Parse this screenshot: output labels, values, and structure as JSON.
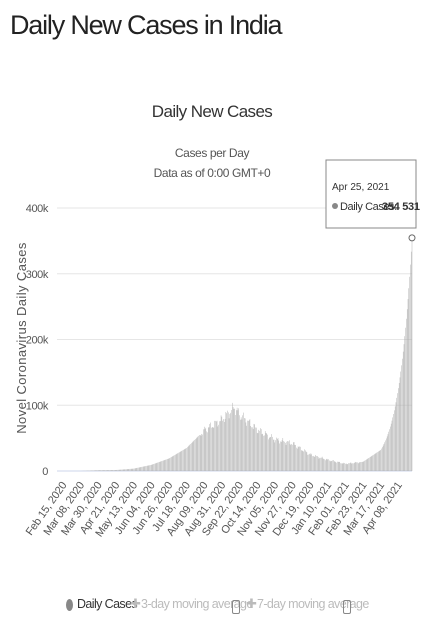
{
  "page": {
    "title": "Daily New Cases in India"
  },
  "chart_data": {
    "type": "bar",
    "title": "Daily New Cases",
    "subtitle_lines": [
      "Cases per Day",
      "Data as of 0:00 GMT+0"
    ],
    "xlabel": "",
    "ylabel": "Novel Coronavirus Daily Cases",
    "ylim": [
      0,
      400000
    ],
    "y_ticks": [
      0,
      100000,
      200000,
      300000,
      400000
    ],
    "y_tick_labels": [
      "0",
      "100k",
      "200k",
      "300k",
      "400k"
    ],
    "x_range": [
      "2020-02-15",
      "2021-04-25"
    ],
    "x_tick_labels": [
      "Feb 15, 2020",
      "Mar 08, 2020",
      "Mar 30, 2020",
      "Apr 21, 2020",
      "May 13, 2020",
      "Jun 04, 2020",
      "Jun 26, 2020",
      "Jul 18, 2020",
      "Aug 09, 2020",
      "Aug 31, 2020",
      "Sep 22, 2020",
      "Oct 14, 2020",
      "Nov 05, 2020",
      "Nov 27, 2020",
      "Dec 19, 2020",
      "Jan 10, 2021",
      "Feb 01, 2021",
      "Feb 23, 2021",
      "Mar 17, 2021",
      "Apr 08, 2021"
    ],
    "grid": true,
    "legend_position": "bottom",
    "bar_color": "#aaaaaa",
    "series": [
      {
        "name": "Daily Cases",
        "x": [
          "2020-02-15",
          "2020-03-08",
          "2020-03-30",
          "2020-04-21",
          "2020-05-13",
          "2020-06-04",
          "2020-06-26",
          "2020-07-18",
          "2020-08-09",
          "2020-08-31",
          "2020-09-16",
          "2020-09-22",
          "2020-10-14",
          "2020-11-05",
          "2020-11-27",
          "2020-12-19",
          "2021-01-10",
          "2021-02-01",
          "2021-02-23",
          "2021-03-17",
          "2021-04-08",
          "2021-04-25"
        ],
        "values": [
          0,
          30,
          1200,
          1500,
          3600,
          9300,
          19000,
          35000,
          62000,
          78000,
          97000,
          86000,
          63000,
          48000,
          42000,
          25000,
          17000,
          11000,
          14000,
          32000,
          126000,
          354531
        ]
      },
      {
        "name": "3-day moving average",
        "values": []
      },
      {
        "name": "7-day moving average",
        "values": []
      }
    ],
    "tooltip": {
      "date": "Apr 25, 2021",
      "label": "Daily Cases:",
      "value": "354 531"
    }
  }
}
